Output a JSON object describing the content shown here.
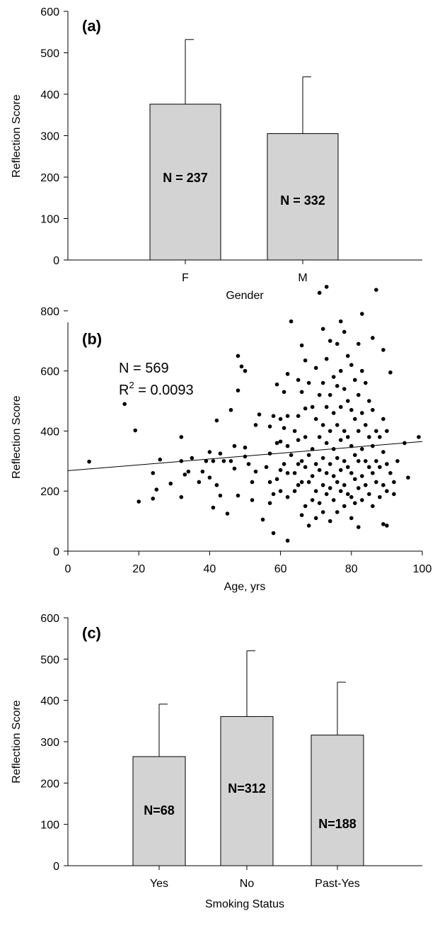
{
  "chart_data": [
    {
      "type": "bar",
      "panel_label": "(a)",
      "xlabel": "Gender",
      "ylabel": "Reflection Score",
      "ylim": [
        0,
        600
      ],
      "yticks": [
        "0",
        "100",
        "200",
        "300",
        "400",
        "500",
        "600"
      ],
      "categories": [
        "F",
        "M"
      ],
      "values": [
        376,
        305
      ],
      "error_upper": [
        532,
        442
      ],
      "bar_labels": [
        "N = 237",
        "N = 332"
      ],
      "bar_color": "#d3d3d3"
    },
    {
      "type": "scatter",
      "panel_label": "(b)",
      "xlabel": "Age, yrs",
      "ylabel": "Reflection Score",
      "xlim": [
        0,
        100
      ],
      "ylim": [
        0,
        950
      ],
      "xticks": [
        "0",
        "20",
        "40",
        "60",
        "80",
        "100"
      ],
      "yticks": [
        "0",
        "200",
        "400",
        "600",
        "800"
      ],
      "annotation_n": "N = 569",
      "annotation_r2_prefix": "R",
      "annotation_r2_sup": "2",
      "annotation_r2_value": " = 0.0093",
      "trendline": {
        "x": [
          0,
          100
        ],
        "y": [
          268,
          365
        ]
      },
      "points": [
        [
          6,
          298
        ],
        [
          16,
          490
        ],
        [
          19,
          402
        ],
        [
          20,
          165
        ],
        [
          24,
          260
        ],
        [
          24,
          175
        ],
        [
          25,
          205
        ],
        [
          26,
          305
        ],
        [
          29,
          225
        ],
        [
          32,
          380
        ],
        [
          32,
          300
        ],
        [
          32,
          180
        ],
        [
          33,
          255
        ],
        [
          34,
          265
        ],
        [
          35,
          310
        ],
        [
          37,
          230
        ],
        [
          38,
          265
        ],
        [
          39,
          300
        ],
        [
          40,
          330
        ],
        [
          40,
          245
        ],
        [
          41,
          300
        ],
        [
          41,
          145
        ],
        [
          42,
          220
        ],
        [
          42,
          435
        ],
        [
          43,
          325
        ],
        [
          43,
          185
        ],
        [
          44,
          300
        ],
        [
          45,
          125
        ],
        [
          46,
          470
        ],
        [
          46,
          300
        ],
        [
          47,
          350
        ],
        [
          47,
          275
        ],
        [
          48,
          650
        ],
        [
          48,
          535
        ],
        [
          48,
          185
        ],
        [
          49,
          615
        ],
        [
          50,
          600
        ],
        [
          50,
          315
        ],
        [
          50,
          345
        ],
        [
          51,
          290
        ],
        [
          52,
          170
        ],
        [
          52,
          230
        ],
        [
          53,
          420
        ],
        [
          53,
          265
        ],
        [
          54,
          455
        ],
        [
          55,
          105
        ],
        [
          56,
          280
        ],
        [
          57,
          415
        ],
        [
          57,
          325
        ],
        [
          57,
          230
        ],
        [
          57,
          160
        ],
        [
          58,
          450
        ],
        [
          58,
          190
        ],
        [
          58,
          60
        ],
        [
          59,
          555
        ],
        [
          59,
          360
        ],
        [
          59,
          240
        ],
        [
          60,
          440
        ],
        [
          60,
          365
        ],
        [
          60,
          270
        ],
        [
          60,
          200
        ],
        [
          61,
          530
        ],
        [
          61,
          410
        ],
        [
          61,
          290
        ],
        [
          62,
          590
        ],
        [
          62,
          450
        ],
        [
          62,
          350
        ],
        [
          62,
          260
        ],
        [
          62,
          180
        ],
        [
          62,
          35
        ],
        [
          63,
          765
        ],
        [
          63,
          320
        ],
        [
          64,
          400
        ],
        [
          64,
          260
        ],
        [
          64,
          200
        ],
        [
          65,
          570
        ],
        [
          65,
          450
        ],
        [
          65,
          370
        ],
        [
          65,
          290
        ],
        [
          65,
          220
        ],
        [
          66,
          685
        ],
        [
          66,
          530
        ],
        [
          66,
          300
        ],
        [
          66,
          230
        ],
        [
          66,
          120
        ],
        [
          67,
          635
        ],
        [
          67,
          475
        ],
        [
          67,
          380
        ],
        [
          67,
          280
        ],
        [
          67,
          150
        ],
        [
          68,
          560
        ],
        [
          68,
          320
        ],
        [
          68,
          230
        ],
        [
          68,
          85
        ],
        [
          69,
          480
        ],
        [
          69,
          340
        ],
        [
          69,
          250
        ],
        [
          69,
          170
        ],
        [
          70,
          610
        ],
        [
          70,
          440
        ],
        [
          70,
          290
        ],
        [
          70,
          200
        ],
        [
          70,
          110
        ],
        [
          71,
          860
        ],
        [
          71,
          520
        ],
        [
          71,
          380
        ],
        [
          71,
          270
        ],
        [
          71,
          160
        ],
        [
          72,
          740
        ],
        [
          72,
          560
        ],
        [
          72,
          420
        ],
        [
          72,
          310
        ],
        [
          72,
          220
        ],
        [
          72,
          130
        ],
        [
          73,
          880
        ],
        [
          73,
          640
        ],
        [
          73,
          480
        ],
        [
          73,
          360
        ],
        [
          73,
          260
        ],
        [
          73,
          190
        ],
        [
          74,
          700
        ],
        [
          74,
          520
        ],
        [
          74,
          400
        ],
        [
          74,
          290
        ],
        [
          74,
          210
        ],
        [
          74,
          100
        ],
        [
          75,
          580
        ],
        [
          75,
          460
        ],
        [
          75,
          340
        ],
        [
          75,
          250
        ],
        [
          75,
          170
        ],
        [
          76,
          690
        ],
        [
          76,
          550
        ],
        [
          76,
          420
        ],
        [
          76,
          310
        ],
        [
          76,
          230
        ],
        [
          76,
          130
        ],
        [
          77,
          765
        ],
        [
          77,
          600
        ],
        [
          77,
          480
        ],
        [
          77,
          370
        ],
        [
          77,
          270
        ],
        [
          77,
          200
        ],
        [
          78,
          730
        ],
        [
          78,
          540
        ],
        [
          78,
          400
        ],
        [
          78,
          300
        ],
        [
          78,
          220
        ],
        [
          78,
          150
        ],
        [
          79,
          650
        ],
        [
          79,
          500
        ],
        [
          79,
          380
        ],
        [
          79,
          280
        ],
        [
          79,
          190
        ],
        [
          80,
          620
        ],
        [
          80,
          470
        ],
        [
          80,
          350
        ],
        [
          80,
          260
        ],
        [
          80,
          180
        ],
        [
          80,
          110
        ],
        [
          81,
          570
        ],
        [
          81,
          440
        ],
        [
          81,
          320
        ],
        [
          81,
          240
        ],
        [
          81,
          160
        ],
        [
          82,
          690
        ],
        [
          82,
          520
        ],
        [
          82,
          400
        ],
        [
          82,
          300
        ],
        [
          82,
          210
        ],
        [
          82,
          80
        ],
        [
          83,
          790
        ],
        [
          83,
          600
        ],
        [
          83,
          460
        ],
        [
          83,
          340
        ],
        [
          83,
          250
        ],
        [
          83,
          170
        ],
        [
          84,
          560
        ],
        [
          84,
          420
        ],
        [
          84,
          300
        ],
        [
          84,
          220
        ],
        [
          85,
          500
        ],
        [
          85,
          380
        ],
        [
          85,
          280
        ],
        [
          85,
          190
        ],
        [
          86,
          710
        ],
        [
          86,
          470
        ],
        [
          86,
          350
        ],
        [
          86,
          260
        ],
        [
          86,
          150
        ],
        [
          87,
          870
        ],
        [
          87,
          400
        ],
        [
          87,
          300
        ],
        [
          87,
          230
        ],
        [
          88,
          380
        ],
        [
          88,
          280
        ],
        [
          88,
          180
        ],
        [
          89,
          670
        ],
        [
          89,
          440
        ],
        [
          89,
          330
        ],
        [
          89,
          220
        ],
        [
          89,
          90
        ],
        [
          90,
          400
        ],
        [
          90,
          290
        ],
        [
          90,
          200
        ],
        [
          90,
          85
        ],
        [
          91,
          595
        ],
        [
          91,
          260
        ],
        [
          92,
          230
        ],
        [
          92,
          190
        ],
        [
          93,
          300
        ],
        [
          95,
          360
        ],
        [
          96,
          245
        ],
        [
          99,
          380
        ]
      ],
      "point_color": "#000000"
    },
    {
      "type": "bar",
      "panel_label": "(c)",
      "xlabel": "Smoking Status",
      "ylabel": "Reflection Score",
      "ylim": [
        0,
        600
      ],
      "yticks": [
        "0",
        "100",
        "200",
        "300",
        "400",
        "500",
        "600"
      ],
      "categories": [
        "Yes",
        "No",
        "Past-Yes"
      ],
      "values": [
        264,
        361,
        316
      ],
      "error_upper": [
        391,
        520,
        444
      ],
      "bar_labels": [
        "N=68",
        "N=312",
        "N=188"
      ],
      "bar_color": "#d3d3d3"
    }
  ]
}
